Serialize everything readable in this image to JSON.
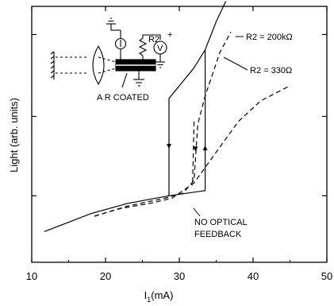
{
  "chart_data": {
    "type": "line",
    "xlabel": "I1(mA)",
    "xlabel_main": "I",
    "xlabel_sub": "1",
    "xlabel_unit": "(mA)",
    "ylabel": "Light (arb. units)",
    "xlim": [
      10,
      50
    ],
    "ylim": [
      0,
      10
    ],
    "x_ticks": [
      10,
      20,
      30,
      40,
      50
    ],
    "x_tick_labels": [
      "10",
      "20",
      "30",
      "40",
      "50"
    ],
    "grid": false,
    "annotations": {
      "r2_200k": "R2 = 200kΩ",
      "r2_330": "R2 = 330Ω",
      "no_feedback_1": "NO OPTICAL",
      "no_feedback_2": "FEEDBACK",
      "ar_coated": "A R COATED",
      "inset_r2": "R2",
      "inset_v": "V",
      "inset_plus": "+"
    },
    "series": [
      {
        "name": "R2 = 200kΩ",
        "style": "solid",
        "points": [
          [
            11.7,
            1.2
          ],
          [
            18,
            1.9
          ],
          [
            23,
            2.3
          ],
          [
            28.6,
            2.6
          ],
          [
            28.6,
            6.4
          ],
          [
            32,
            7.6
          ],
          [
            33.5,
            8.3
          ],
          [
            35,
            9.4
          ],
          [
            36.3,
            10.2
          ]
        ],
        "return_path": [
          [
            33.5,
            8.3
          ],
          [
            33.5,
            2.8
          ],
          [
            28.6,
            2.6
          ]
        ]
      },
      {
        "name": "R2 = 330Ω",
        "style": "dashed",
        "points": [
          [
            18.5,
            1.8
          ],
          [
            23,
            2.2
          ],
          [
            28,
            2.5
          ],
          [
            30.5,
            2.7
          ],
          [
            32,
            3.2
          ],
          [
            32.5,
            5.4
          ],
          [
            33.5,
            6.5
          ],
          [
            35.5,
            8.2
          ],
          [
            37,
            9.0
          ]
        ],
        "return_path": [
          [
            32,
            5.5
          ],
          [
            31.8,
            3.0
          ]
        ]
      },
      {
        "name": "NO OPTICAL FEEDBACK",
        "style": "dashed",
        "points": [
          [
            18.5,
            1.8
          ],
          [
            22,
            2.1
          ],
          [
            26,
            2.3
          ],
          [
            29,
            2.5
          ],
          [
            32,
            3.1
          ],
          [
            35,
            4.3
          ],
          [
            38,
            5.5
          ],
          [
            41,
            6.3
          ],
          [
            45,
            6.9
          ]
        ]
      }
    ]
  }
}
